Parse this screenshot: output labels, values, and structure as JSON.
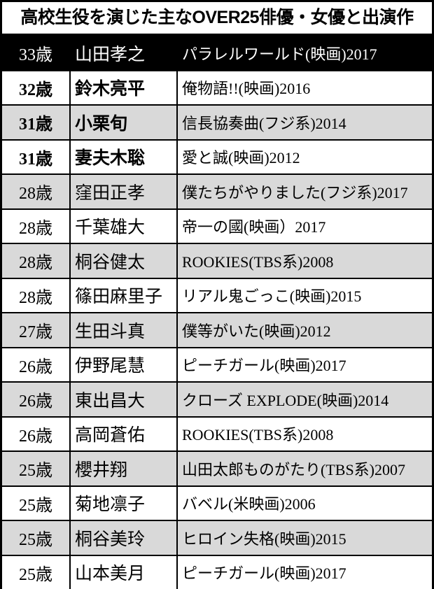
{
  "title": "高校生役を演じた主なOVER25俳優・女優と出演作",
  "colors": {
    "header_bg": "#000000",
    "stripe": "#d9d9d9",
    "text": "#000000"
  },
  "rows": [
    {
      "age": "33歳",
      "name": "山田孝之",
      "work": "パラレルワールド(映画)2017",
      "style": "head"
    },
    {
      "age": "32歳",
      "name": "鈴木亮平",
      "work": "俺物語!!(映画)2016",
      "style": "bold"
    },
    {
      "age": "31歳",
      "name": "小栗旬",
      "work": "信長協奏曲(フジ系)2014",
      "style": "bold gray"
    },
    {
      "age": "31歳",
      "name": "妻夫木聡",
      "work": "愛と誠(映画)2012",
      "style": "bold"
    },
    {
      "age": "28歳",
      "name": "窪田正孝",
      "work": "僕たちがやりました(フジ系)2017",
      "style": "gray"
    },
    {
      "age": "28歳",
      "name": "千葉雄大",
      "work": "帝一の國(映画）2017",
      "style": ""
    },
    {
      "age": "28歳",
      "name": "桐谷健太",
      "work": "ROOKIES(TBS系)2008",
      "style": "gray"
    },
    {
      "age": "28歳",
      "name": "篠田麻里子",
      "work": "リアル鬼ごっこ(映画)2015",
      "style": ""
    },
    {
      "age": "27歳",
      "name": "生田斗真",
      "work": "僕等がいた(映画)2012",
      "style": "gray"
    },
    {
      "age": "26歳",
      "name": "伊野尾慧",
      "work": "ピーチガール(映画)2017",
      "style": ""
    },
    {
      "age": "26歳",
      "name": "東出昌大",
      "work": "クローズ EXPLODE(映画)2014",
      "style": "gray"
    },
    {
      "age": "26歳",
      "name": "高岡蒼佑",
      "work": "ROOKIES(TBS系)2008",
      "style": ""
    },
    {
      "age": "25歳",
      "name": "櫻井翔",
      "work": "山田太郎ものがたり(TBS系)2007",
      "style": "gray"
    },
    {
      "age": "25歳",
      "name": "菊地凛子",
      "work": "バベル(米映画)2006",
      "style": ""
    },
    {
      "age": "25歳",
      "name": "桐谷美玲",
      "work": "ヒロイン失格(映画)2015",
      "style": "gray"
    },
    {
      "age": "25歳",
      "name": "山本美月",
      "work": "ピーチガール(映画)2017",
      "style": ""
    }
  ]
}
